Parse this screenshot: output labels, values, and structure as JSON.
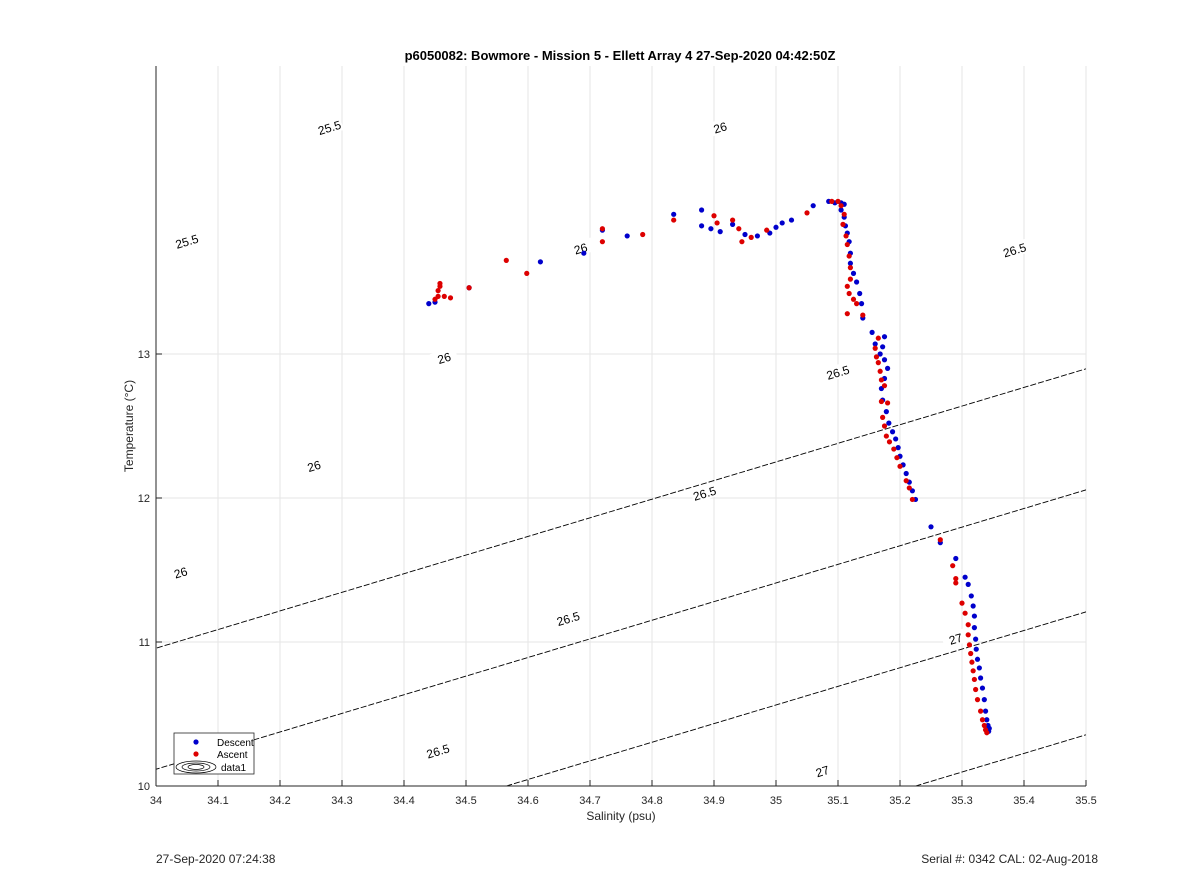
{
  "chart_data": {
    "type": "scatter",
    "title": "p6050082: Bowmore - Mission 5 - Ellett Array 4 27-Sep-2020 04:42:50Z",
    "xlabel": "Salinity (psu)",
    "ylabel": "Temperature (°C)",
    "xlim": [
      34,
      35.5
    ],
    "ylim": [
      10,
      15
    ],
    "xticks": [
      "34",
      "34.1",
      "34.2",
      "34.3",
      "34.4",
      "34.5",
      "34.6",
      "34.7",
      "34.8",
      "34.9",
      "35",
      "35.1",
      "35.2",
      "35.3",
      "35.4",
      "35.5"
    ],
    "yticks": [
      "10",
      "11",
      "12",
      "13"
    ],
    "grid": true,
    "legend_placement": "bottom-left",
    "legend": [
      "Descent",
      "Ascent",
      "data1"
    ],
    "density_contours": [
      {
        "sigma": 25.5,
        "label": "25.5",
        "s_at_t10": 33.26
      },
      {
        "sigma": 26,
        "label": "26",
        "s_at_t10": 33.91
      },
      {
        "sigma": 26.5,
        "label": "26.5",
        "s_at_t10": 34.565
      },
      {
        "sigma": 27,
        "label": "27",
        "s_at_t10": 35.225
      }
    ],
    "contour_labels": [
      {
        "label": "25.5",
        "x": 34.28,
        "y": 14.57
      },
      {
        "label": "25.5",
        "x": 34.05,
        "y": 13.78
      },
      {
        "label": "26",
        "x": 34.91,
        "y": 14.57
      },
      {
        "label": "26",
        "x": 34.685,
        "y": 13.73
      },
      {
        "label": "26",
        "x": 34.465,
        "y": 12.97
      },
      {
        "label": "26",
        "x": 34.255,
        "y": 12.22
      },
      {
        "label": "26",
        "x": 34.04,
        "y": 11.48
      },
      {
        "label": "26.5",
        "x": 35.385,
        "y": 13.72
      },
      {
        "label": "26.5",
        "x": 35.1,
        "y": 12.87
      },
      {
        "label": "26.5",
        "x": 34.885,
        "y": 12.03
      },
      {
        "label": "26.5",
        "x": 34.665,
        "y": 11.16
      },
      {
        "label": "26.5",
        "x": 34.455,
        "y": 10.24
      },
      {
        "label": "27",
        "x": 35.29,
        "y": 11.02
      },
      {
        "label": "27",
        "x": 35.075,
        "y": 10.1
      }
    ],
    "series": [
      {
        "name": "Descent",
        "color": "#0000cc",
        "points": [
          [
            34.44,
            13.35
          ],
          [
            34.45,
            13.36
          ],
          [
            34.505,
            13.46
          ],
          [
            34.62,
            13.64
          ],
          [
            34.69,
            13.7
          ],
          [
            34.72,
            13.86
          ],
          [
            34.76,
            13.82
          ],
          [
            34.835,
            13.97
          ],
          [
            34.88,
            14.0
          ],
          [
            34.88,
            13.89
          ],
          [
            34.895,
            13.87
          ],
          [
            34.91,
            13.85
          ],
          [
            34.93,
            13.9
          ],
          [
            34.95,
            13.83
          ],
          [
            34.97,
            13.82
          ],
          [
            34.99,
            13.84
          ],
          [
            35.0,
            13.88
          ],
          [
            35.01,
            13.91
          ],
          [
            35.025,
            13.93
          ],
          [
            35.06,
            14.03
          ],
          [
            35.085,
            14.06
          ],
          [
            35.095,
            14.05
          ],
          [
            35.105,
            14.05
          ],
          [
            35.11,
            14.04
          ],
          [
            35.105,
            14.0
          ],
          [
            35.11,
            13.95
          ],
          [
            35.112,
            13.89
          ],
          [
            35.115,
            13.84
          ],
          [
            35.118,
            13.78
          ],
          [
            35.12,
            13.7
          ],
          [
            35.12,
            13.63
          ],
          [
            35.125,
            13.56
          ],
          [
            35.13,
            13.5
          ],
          [
            35.135,
            13.42
          ],
          [
            35.138,
            13.35
          ],
          [
            35.14,
            13.25
          ],
          [
            35.155,
            13.15
          ],
          [
            35.16,
            13.07
          ],
          [
            35.168,
            13.0
          ],
          [
            35.175,
            13.12
          ],
          [
            35.172,
            13.05
          ],
          [
            35.175,
            12.96
          ],
          [
            35.18,
            12.9
          ],
          [
            35.175,
            12.83
          ],
          [
            35.17,
            12.76
          ],
          [
            35.172,
            12.68
          ],
          [
            35.178,
            12.6
          ],
          [
            35.182,
            12.52
          ],
          [
            35.188,
            12.46
          ],
          [
            35.193,
            12.41
          ],
          [
            35.197,
            12.35
          ],
          [
            35.2,
            12.29
          ],
          [
            35.205,
            12.23
          ],
          [
            35.21,
            12.17
          ],
          [
            35.215,
            12.11
          ],
          [
            35.22,
            12.05
          ],
          [
            35.225,
            11.99
          ],
          [
            35.25,
            11.8
          ],
          [
            35.265,
            11.69
          ],
          [
            35.29,
            11.58
          ],
          [
            35.305,
            11.45
          ],
          [
            35.31,
            11.4
          ],
          [
            35.315,
            11.32
          ],
          [
            35.318,
            11.25
          ],
          [
            35.32,
            11.18
          ],
          [
            35.32,
            11.1
          ],
          [
            35.322,
            11.02
          ],
          [
            35.323,
            10.95
          ],
          [
            35.325,
            10.88
          ],
          [
            35.328,
            10.82
          ],
          [
            35.33,
            10.75
          ],
          [
            35.333,
            10.68
          ],
          [
            35.336,
            10.6
          ],
          [
            35.338,
            10.52
          ],
          [
            35.34,
            10.46
          ],
          [
            35.342,
            10.42
          ],
          [
            35.344,
            10.4
          ],
          [
            35.343,
            10.38
          ]
        ]
      },
      {
        "name": "Ascent",
        "color": "#dd0000",
        "points": [
          [
            34.45,
            13.38
          ],
          [
            34.455,
            13.4
          ],
          [
            34.455,
            13.44
          ],
          [
            34.458,
            13.47
          ],
          [
            34.458,
            13.49
          ],
          [
            34.465,
            13.4
          ],
          [
            34.475,
            13.39
          ],
          [
            34.505,
            13.46
          ],
          [
            34.565,
            13.65
          ],
          [
            34.598,
            13.56
          ],
          [
            34.72,
            13.87
          ],
          [
            34.72,
            13.78
          ],
          [
            34.785,
            13.83
          ],
          [
            34.835,
            13.93
          ],
          [
            34.9,
            13.96
          ],
          [
            34.905,
            13.91
          ],
          [
            34.93,
            13.93
          ],
          [
            34.94,
            13.87
          ],
          [
            34.945,
            13.78
          ],
          [
            34.96,
            13.81
          ],
          [
            34.985,
            13.86
          ],
          [
            35.05,
            13.98
          ],
          [
            35.09,
            14.06
          ],
          [
            35.1,
            14.06
          ],
          [
            35.105,
            14.03
          ],
          [
            35.11,
            13.97
          ],
          [
            35.108,
            13.9
          ],
          [
            35.113,
            13.82
          ],
          [
            35.115,
            13.76
          ],
          [
            35.118,
            13.68
          ],
          [
            35.12,
            13.6
          ],
          [
            35.12,
            13.52
          ],
          [
            35.115,
            13.47
          ],
          [
            35.118,
            13.42
          ],
          [
            35.125,
            13.38
          ],
          [
            35.13,
            13.35
          ],
          [
            35.115,
            13.28
          ],
          [
            35.14,
            13.27
          ],
          [
            35.165,
            13.11
          ],
          [
            35.16,
            13.04
          ],
          [
            35.162,
            12.98
          ],
          [
            35.165,
            12.94
          ],
          [
            35.168,
            12.88
          ],
          [
            35.17,
            12.82
          ],
          [
            35.175,
            12.78
          ],
          [
            35.17,
            12.67
          ],
          [
            35.18,
            12.66
          ],
          [
            35.172,
            12.56
          ],
          [
            35.175,
            12.5
          ],
          [
            35.178,
            12.43
          ],
          [
            35.183,
            12.39
          ],
          [
            35.19,
            12.34
          ],
          [
            35.195,
            12.28
          ],
          [
            35.2,
            12.22
          ],
          [
            35.21,
            12.12
          ],
          [
            35.215,
            12.07
          ],
          [
            35.22,
            11.99
          ],
          [
            35.265,
            11.71
          ],
          [
            35.285,
            11.53
          ],
          [
            35.29,
            11.44
          ],
          [
            35.29,
            11.41
          ],
          [
            35.3,
            11.27
          ],
          [
            35.305,
            11.2
          ],
          [
            35.31,
            11.12
          ],
          [
            35.31,
            11.05
          ],
          [
            35.312,
            10.98
          ],
          [
            35.314,
            10.92
          ],
          [
            35.316,
            10.86
          ],
          [
            35.318,
            10.8
          ],
          [
            35.32,
            10.74
          ],
          [
            35.322,
            10.67
          ],
          [
            35.325,
            10.6
          ],
          [
            35.33,
            10.52
          ],
          [
            35.333,
            10.46
          ],
          [
            35.336,
            10.42
          ],
          [
            35.338,
            10.39
          ],
          [
            35.34,
            10.37
          ]
        ]
      }
    ]
  },
  "footer": {
    "left": "27-Sep-2020 07:24:38",
    "right": "Serial #: 0342  CAL: 02-Aug-2018"
  }
}
